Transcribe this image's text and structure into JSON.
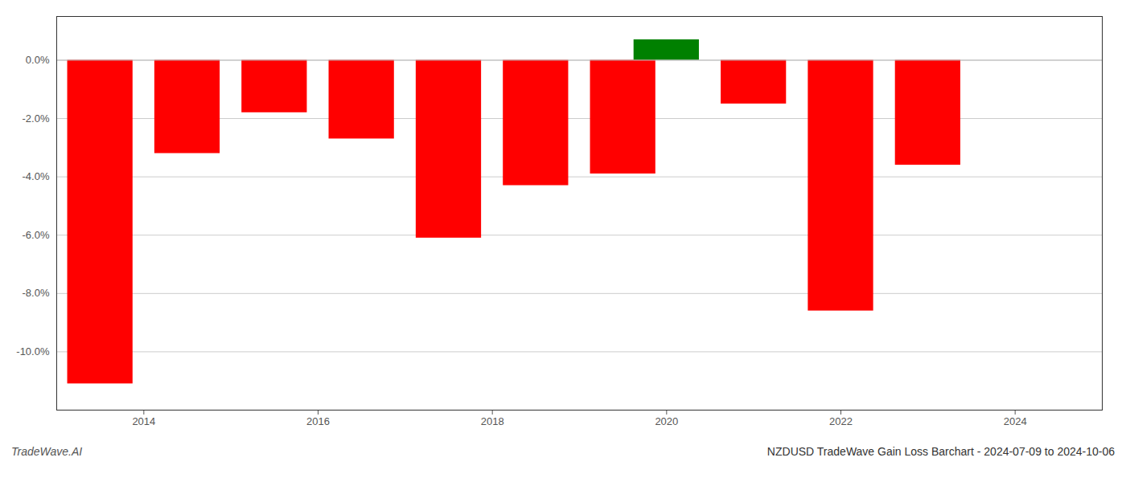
{
  "chart_data": {
    "type": "bar",
    "title": "NZDUSD TradeWave Gain Loss Barchart - 2024-07-09 to 2024-10-06",
    "annotations": [
      "TradeWave.AI"
    ],
    "x": [
      2013.5,
      2014.5,
      2015.5,
      2016.5,
      2017.5,
      2018.5,
      2019.5,
      2020.0,
      2021.0,
      2022.0,
      2023.0
    ],
    "values": [
      -11.1,
      -3.2,
      -1.8,
      -2.7,
      -6.1,
      -4.3,
      -3.9,
      0.7,
      -1.5,
      -8.6,
      -3.6
    ],
    "colors": [
      "#ff0000",
      "#ff0000",
      "#ff0000",
      "#ff0000",
      "#ff0000",
      "#ff0000",
      "#ff0000",
      "#008000",
      "#ff0000",
      "#ff0000",
      "#ff0000"
    ],
    "xlim": [
      2013.0,
      2025.0
    ],
    "xticks": [
      2014,
      2016,
      2018,
      2020,
      2022,
      2024
    ],
    "ylim": [
      -12,
      1.5
    ],
    "yticks": [
      {
        "value": 0,
        "label": "0.0%"
      },
      {
        "value": -2,
        "label": "-2.0%"
      },
      {
        "value": -4,
        "label": "-4.0%"
      },
      {
        "value": -6,
        "label": "-6.0%"
      },
      {
        "value": -8,
        "label": "-8.0%"
      },
      {
        "value": -10,
        "label": "-10.0%"
      }
    ],
    "grid": true
  }
}
